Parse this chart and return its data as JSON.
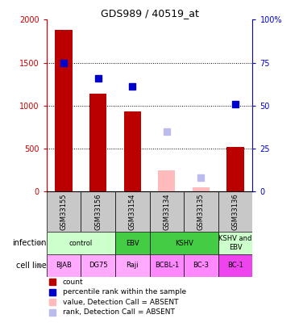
{
  "title": "GDS989 / 40519_at",
  "samples": [
    "GSM33155",
    "GSM33156",
    "GSM33154",
    "GSM33134",
    "GSM33135",
    "GSM33136"
  ],
  "count_values": [
    1880,
    1140,
    930,
    null,
    null,
    520
  ],
  "count_absent": [
    null,
    null,
    null,
    250,
    50,
    null
  ],
  "rank_values": [
    75,
    66,
    61,
    null,
    null,
    51
  ],
  "rank_absent": [
    null,
    null,
    null,
    35,
    8,
    null
  ],
  "ylim_left": [
    0,
    2000
  ],
  "ylim_right": [
    0,
    100
  ],
  "yticks_left": [
    0,
    500,
    1000,
    1500,
    2000
  ],
  "yticks_right": [
    0,
    25,
    50,
    75,
    100
  ],
  "ytick_labels_left": [
    "0",
    "500",
    "1000",
    "1500",
    "2000"
  ],
  "ytick_labels_right": [
    "0",
    "25",
    "50",
    "75",
    "100%"
  ],
  "bar_color": "#bb0000",
  "bar_absent_color": "#ffbbbb",
  "rank_color": "#0000cc",
  "rank_absent_color": "#bbbbee",
  "infection_spans": [
    {
      "label": "control",
      "start": 0,
      "end": 2,
      "color": "#ccffcc"
    },
    {
      "label": "EBV",
      "start": 2,
      "end": 3,
      "color": "#44cc44"
    },
    {
      "label": "KSHV",
      "start": 3,
      "end": 5,
      "color": "#44cc44"
    },
    {
      "label": "KSHV and\nEBV",
      "start": 5,
      "end": 6,
      "color": "#ccffcc"
    }
  ],
  "cell_lines": [
    "BJAB",
    "DG75",
    "Raji",
    "BCBL-1",
    "BC-3",
    "BC-1"
  ],
  "cell_line_colors": [
    "#ffaaff",
    "#ffaaff",
    "#ffaaff",
    "#ff88ff",
    "#ff88ff",
    "#ee44ee"
  ],
  "gsm_bg": "#c8c8c8",
  "plot_bg": "#ffffff",
  "left_tick_color": "#cc0000",
  "right_tick_color": "#0000cc",
  "legend_items": [
    {
      "color": "#bb0000",
      "marker": "s",
      "label": "count"
    },
    {
      "color": "#0000cc",
      "marker": "s",
      "label": "percentile rank within the sample"
    },
    {
      "color": "#ffbbbb",
      "marker": "s",
      "label": "value, Detection Call = ABSENT"
    },
    {
      "color": "#bbbbee",
      "marker": "s",
      "label": "rank, Detection Call = ABSENT"
    }
  ]
}
